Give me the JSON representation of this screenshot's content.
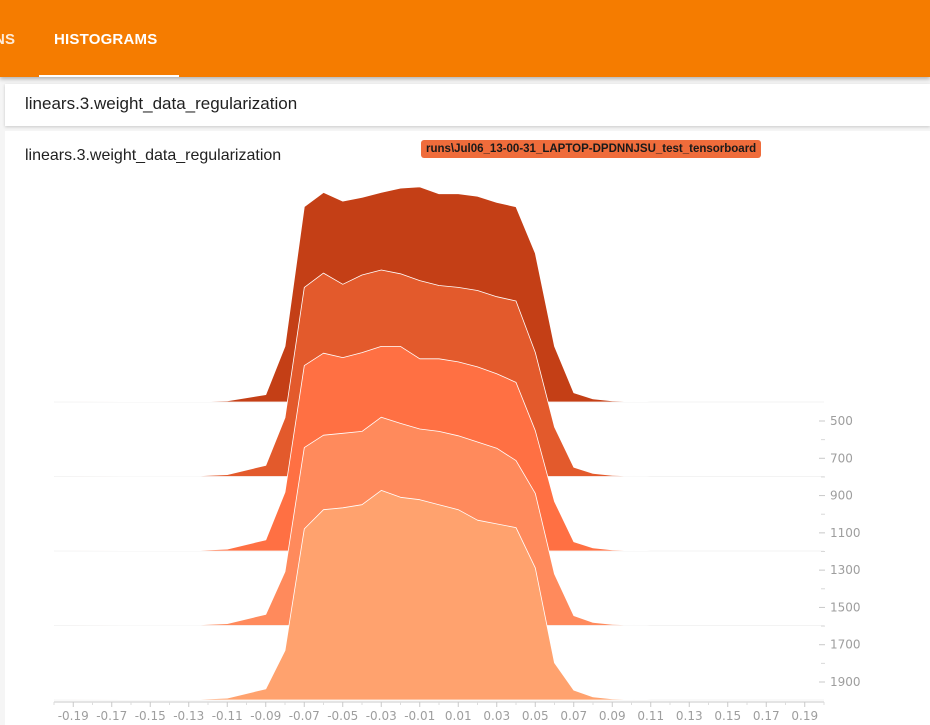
{
  "nav": {
    "tabs": [
      {
        "label": "NS",
        "active": false
      },
      {
        "label": "HISTOGRAMS",
        "active": true
      }
    ]
  },
  "tag_header": {
    "text": "linears.3.weight_data_regularization"
  },
  "card": {
    "title": "linears.3.weight_data_regularization",
    "run_label": "runs\\Jul06_13-00-31_LAPTOP-DPDNNJSU_test_tensorboard"
  },
  "chart_data": {
    "type": "area",
    "mode": "offset",
    "x_ticks": [
      "-0.19",
      "-0.17",
      "-0.15",
      "-0.13",
      "-0.11",
      "-0.09",
      "-0.07",
      "-0.05",
      "-0.03",
      "-0.01",
      "0.01",
      "0.03",
      "0.05",
      "0.07",
      "0.09",
      "0.11",
      "0.13",
      "0.15",
      "0.17",
      "0.19"
    ],
    "xlim": [
      -0.2,
      0.2
    ],
    "y_ticks": [
      "500",
      "700",
      "900",
      "1100",
      "1300",
      "1500",
      "1700",
      "1900"
    ],
    "colors": [
      "#c43f16",
      "#e35a2c",
      "#ff7043",
      "#ff8a5c",
      "#ffa26e"
    ],
    "x": [
      -0.2,
      -0.15,
      -0.13,
      -0.11,
      -0.09,
      -0.08,
      -0.07,
      -0.06,
      -0.05,
      -0.04,
      -0.03,
      -0.02,
      -0.01,
      0.0,
      0.01,
      0.02,
      0.03,
      0.04,
      0.05,
      0.06,
      0.07,
      0.08,
      0.09,
      0.11,
      0.15,
      0.2
    ],
    "series": [
      {
        "step": 300,
        "values": [
          0,
          0.02,
          0.05,
          0.2,
          1.2,
          9.0,
          31.5,
          33.8,
          32.4,
          33.0,
          33.8,
          34.5,
          34.7,
          33.6,
          33.6,
          33.2,
          32.2,
          31.5,
          24.0,
          9.0,
          1.5,
          0.5,
          0.2,
          0,
          0,
          0
        ]
      },
      {
        "step": 700,
        "values": [
          0,
          0.02,
          0.05,
          0.3,
          1.8,
          9.5,
          30.5,
          32.8,
          31.0,
          32.5,
          33.3,
          32.7,
          31.6,
          30.8,
          30.5,
          30.0,
          29.0,
          28.3,
          20.0,
          8.0,
          1.5,
          0.5,
          0.2,
          0,
          0,
          0
        ]
      },
      {
        "step": 1100,
        "values": [
          0,
          0.02,
          0.05,
          0.3,
          1.8,
          9.5,
          29.9,
          31.9,
          31.2,
          32.0,
          33.0,
          33.0,
          31.0,
          31.0,
          30.5,
          29.7,
          28.6,
          27.2,
          19.4,
          8.0,
          1.5,
          0.5,
          0.2,
          0,
          0,
          0
        ]
      },
      {
        "step": 1500,
        "values": [
          0,
          0.02,
          0.05,
          0.3,
          1.8,
          8.7,
          28.7,
          30.7,
          31.0,
          31.3,
          33.6,
          32.6,
          31.7,
          31.3,
          30.6,
          29.6,
          28.6,
          26.6,
          21.3,
          8.3,
          1.6,
          0.5,
          0.2,
          0,
          0,
          0
        ]
      },
      {
        "step": 1900,
        "values": [
          0,
          0.02,
          0.05,
          0.3,
          1.8,
          8.0,
          27.6,
          30.7,
          31.0,
          31.5,
          33.8,
          32.7,
          32.3,
          31.5,
          30.7,
          29.0,
          28.4,
          27.8,
          21.3,
          6.0,
          1.6,
          0.5,
          0.2,
          0,
          0,
          0
        ]
      }
    ]
  }
}
